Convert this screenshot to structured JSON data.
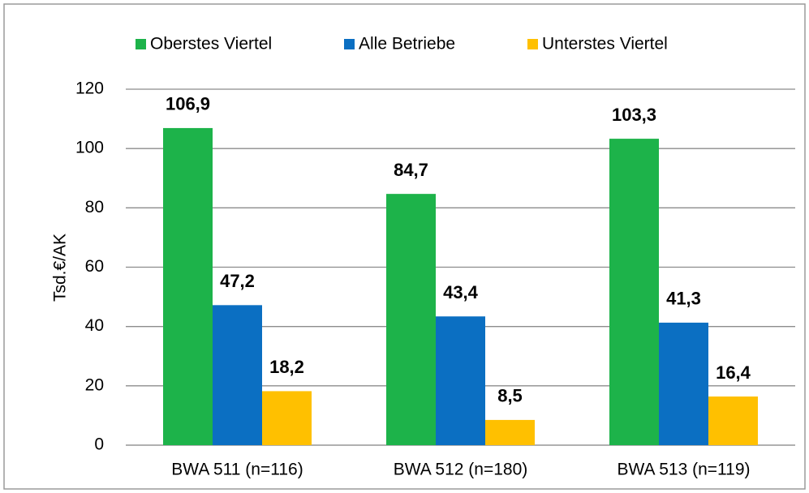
{
  "chart_data": {
    "type": "bar",
    "categories": [
      "BWA 511 (n=116)",
      "BWA 512 (n=180)",
      "BWA 513 (n=119)"
    ],
    "series": [
      {
        "name": "Oberstes Viertel",
        "color": "#1db34a",
        "values": [
          106.9,
          84.7,
          103.3
        ],
        "value_labels": [
          "106,9",
          "84,7",
          "103,3"
        ]
      },
      {
        "name": "Alle Betriebe",
        "color": "#0b6fc2",
        "values": [
          47.2,
          43.4,
          41.3
        ],
        "value_labels": [
          "47,2",
          "43,4",
          "41,3"
        ]
      },
      {
        "name": "Unterstes Viertel",
        "color": "#ffc000",
        "values": [
          18.2,
          8.5,
          16.4
        ],
        "value_labels": [
          "18,2",
          "8,5",
          "16,4"
        ]
      }
    ],
    "y_label": "Tsd.€/AK",
    "ylim": [
      0,
      120
    ],
    "yticks": [
      0,
      20,
      40,
      60,
      80,
      100,
      120
    ],
    "grid": true,
    "legend": "top"
  }
}
